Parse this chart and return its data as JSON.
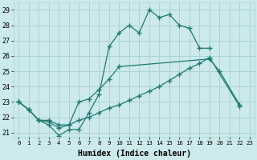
{
  "xlabel": "Humidex (Indice chaleur)",
  "background_color": "#cce9eb",
  "grid_color": "#aad4d6",
  "line_color": "#1e7b72",
  "xlim": [
    -0.5,
    23.5
  ],
  "ylim": [
    20.7,
    29.5
  ],
  "yticks": [
    21,
    22,
    23,
    24,
    25,
    26,
    27,
    28,
    29
  ],
  "xticks": [
    0,
    1,
    2,
    3,
    4,
    5,
    6,
    7,
    8,
    9,
    10,
    11,
    12,
    13,
    14,
    15,
    16,
    17,
    18,
    19,
    20,
    21,
    22,
    23
  ],
  "series": [
    {
      "x": [
        0,
        1,
        2,
        3,
        4,
        5,
        6,
        7,
        8,
        9,
        10,
        11,
        12,
        13,
        14,
        15,
        16,
        17,
        18,
        19
      ],
      "y": [
        23,
        22.5,
        21.8,
        21.5,
        20.8,
        21.2,
        21.2,
        22.3,
        23.5,
        26.6,
        27.5,
        28.0,
        27.5,
        29.0,
        28.5,
        28.7,
        28.0,
        27.8,
        26.5,
        26.5
      ]
    },
    {
      "x": [
        0,
        1,
        2,
        3,
        4,
        5,
        6,
        7,
        8,
        9,
        10,
        19,
        20,
        22
      ],
      "y": [
        23,
        22.5,
        21.8,
        21.7,
        21.3,
        21.5,
        23.0,
        23.2,
        23.8,
        24.5,
        25.3,
        25.8,
        25.0,
        22.8
      ]
    },
    {
      "x": [
        0,
        1,
        2,
        3,
        4,
        5,
        6,
        7,
        8,
        9,
        10,
        11,
        12,
        13,
        14,
        15,
        16,
        17,
        18,
        19,
        22
      ],
      "y": [
        23,
        22.5,
        21.8,
        21.8,
        21.5,
        21.5,
        21.8,
        22.0,
        22.3,
        22.6,
        22.8,
        23.1,
        23.4,
        23.7,
        24.0,
        24.4,
        24.8,
        25.2,
        25.5,
        25.9,
        22.7
      ]
    }
  ]
}
